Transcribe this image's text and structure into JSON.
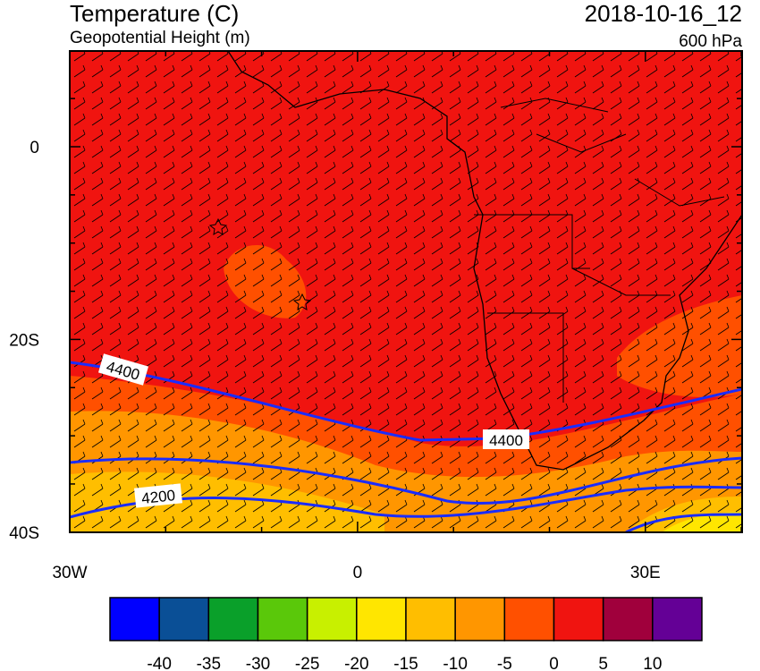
{
  "header": {
    "title": "Temperature (C)",
    "subtitle": "Geopotential Height (m)",
    "datetime": "2018-10-16_12",
    "level": "600 hPa"
  },
  "axes": {
    "lat_labels": [
      "0",
      "20S",
      "40S"
    ],
    "lon_labels": [
      "30W",
      "0",
      "30E"
    ]
  },
  "contour_labels": [
    "4400",
    "4400",
    "4200"
  ],
  "colorbar": {
    "labels": [
      "-40",
      "-35",
      "-30",
      "-25",
      "-20",
      "-15",
      "-10",
      "-5",
      "0",
      "5",
      "10"
    ],
    "colors": [
      "#0000ff",
      "#0a4f96",
      "#0aa02a",
      "#5ac80a",
      "#c8f000",
      "#ffe600",
      "#ffbe00",
      "#ff9600",
      "#ff5000",
      "#f01410",
      "#a0003c",
      "#640096"
    ]
  }
}
